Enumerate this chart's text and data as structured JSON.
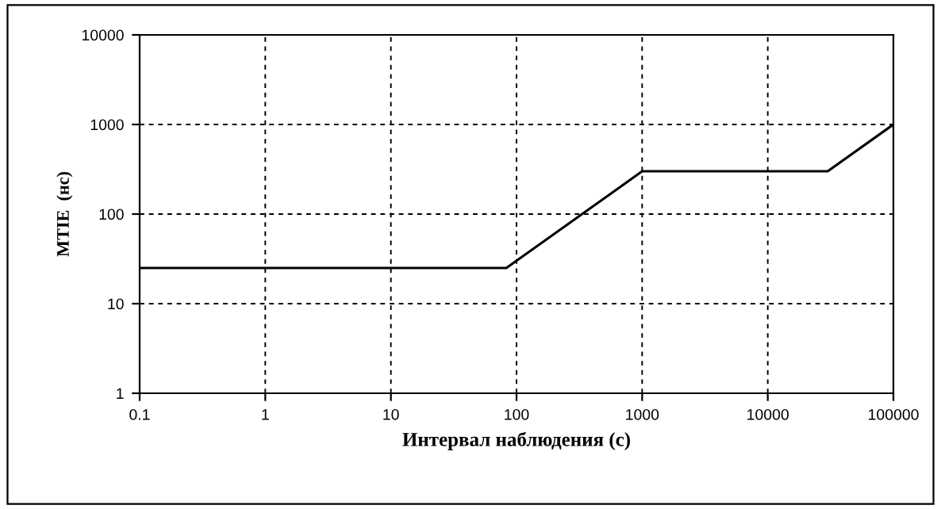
{
  "chart_data": {
    "type": "line",
    "xlabel": "Интервал наблюдения (с)",
    "ylabel": "MTIE  (нс)",
    "x": [
      0.1,
      83,
      1000,
      30000,
      100000
    ],
    "series": [
      {
        "color": "#000000",
        "values": [
          25,
          25,
          300,
          300,
          1000
        ]
      }
    ],
    "log": "xy",
    "xlim": [
      0.1,
      100000
    ],
    "ylim": [
      1,
      10000
    ],
    "xticks": [
      0.1,
      1,
      10,
      100,
      1000,
      10000,
      100000
    ],
    "yticks": [
      1,
      10,
      100,
      1000,
      10000
    ],
    "grid": true,
    "line_style": "solid",
    "marker": "none"
  }
}
